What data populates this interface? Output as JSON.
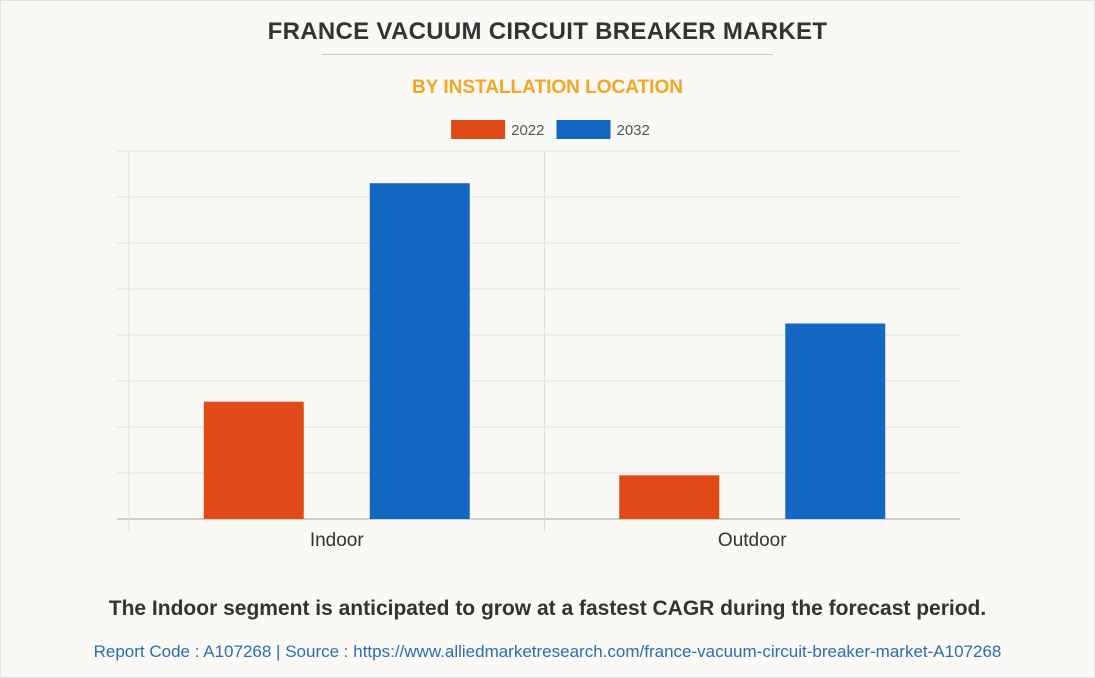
{
  "chart_data": {
    "type": "bar",
    "title": "FRANCE VACUUM CIRCUIT BREAKER MARKET",
    "subtitle": "BY INSTALLATION LOCATION",
    "categories": [
      "Indoor",
      "Outdoor"
    ],
    "series": [
      {
        "name": "2022",
        "color": "#e04a17",
        "values": [
          25.5,
          9.5
        ]
      },
      {
        "name": "2032",
        "color": "#1467c2",
        "values": [
          73,
          42.5
        ]
      }
    ],
    "ylim": [
      0,
      80
    ],
    "grid": true,
    "legend": "top-center",
    "xlabel": "",
    "ylabel": ""
  },
  "caption": "The Indoor segment is anticipated to grow at a fastest CAGR during the forecast period.",
  "footer": {
    "report_code": "Report Code : A107268",
    "separator": "|",
    "source": "Source : https://www.alliedmarketresearch.com/france-vacuum-circuit-breaker-market-A107268"
  }
}
